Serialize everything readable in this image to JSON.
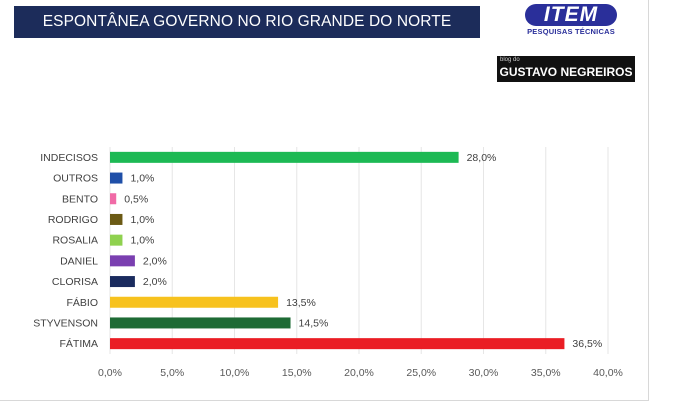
{
  "header": {
    "title": "ESPONTÂNEA GOVERNO NO RIO GRANDE DO NORTE",
    "logo_text": "ITEM",
    "logo_subtitle": "PESQUISAS TÉCNICAS",
    "blog_small": "blog do",
    "blog_name": "GUSTAVO NEGREIROS"
  },
  "chart_data": {
    "type": "bar",
    "orientation": "horizontal",
    "title": "ESPONTÂNEA GOVERNO NO RIO GRANDE DO NORTE",
    "categories": [
      "INDECISOS",
      "OUTROS",
      "BENTO",
      "RODRIGO",
      "ROSALIA",
      "DANIEL",
      "CLORISA",
      "FÁBIO",
      "STYVENSON",
      "FÁTIMA"
    ],
    "values": [
      28.0,
      1.0,
      0.5,
      1.0,
      1.0,
      2.0,
      2.0,
      13.5,
      14.5,
      36.5
    ],
    "data_labels": [
      "28,0%",
      "1,0%",
      "0,5%",
      "1,0%",
      "1,0%",
      "2,0%",
      "2,0%",
      "13,5%",
      "14,5%",
      "36,5%"
    ],
    "colors": [
      "#1db954",
      "#1f4fa8",
      "#f06aa6",
      "#6b5a14",
      "#8fd14f",
      "#7a3fb0",
      "#1a2b5e",
      "#f7c21e",
      "#1e6b35",
      "#ea1d24"
    ],
    "xlim": [
      0,
      40
    ],
    "x_ticks": [
      0,
      5,
      10,
      15,
      20,
      25,
      30,
      35,
      40
    ],
    "x_tick_labels": [
      "0,0%",
      "5,0%",
      "10,0%",
      "15,0%",
      "20,0%",
      "25,0%",
      "30,0%",
      "35,0%",
      "40,0%"
    ],
    "xlabel": "",
    "ylabel": "",
    "grid": true,
    "legend": "none"
  }
}
